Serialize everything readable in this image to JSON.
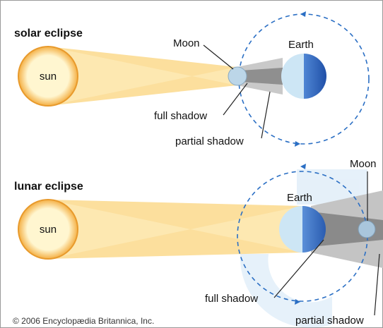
{
  "panels": [
    {
      "title": "solar eclipse",
      "sun": "sun",
      "moon": "Moon",
      "earth": "Earth",
      "full_shadow": "full shadow",
      "partial_shadow": "partial shadow"
    },
    {
      "title": "lunar eclipse",
      "sun": "sun",
      "earth": "Earth",
      "moon": "Moon",
      "full_shadow": "full shadow",
      "partial_shadow": "partial shadow"
    }
  ],
  "credit": "© 2006 Encyclopædia Britannica, Inc."
}
